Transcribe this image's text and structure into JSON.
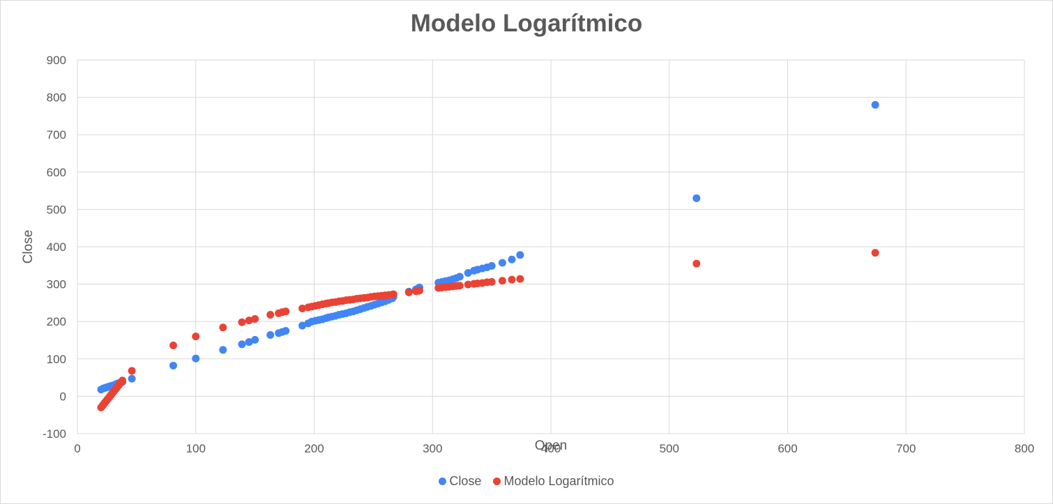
{
  "chart_data": {
    "type": "scatter",
    "title": "Modelo Logarítmico",
    "xlabel": "Open",
    "ylabel": "Close",
    "xlim": [
      0,
      800
    ],
    "ylim": [
      -100,
      900
    ],
    "xticks": [
      0,
      100,
      200,
      300,
      400,
      500,
      600,
      700,
      800
    ],
    "yticks": [
      -100,
      0,
      100,
      200,
      300,
      400,
      500,
      600,
      700,
      800,
      900
    ],
    "grid": true,
    "legend_position": "bottom",
    "series": [
      {
        "name": "Close",
        "color": "#4285f4",
        "points": [
          [
            20,
            18
          ],
          [
            22,
            21
          ],
          [
            23,
            22
          ],
          [
            24,
            23
          ],
          [
            25,
            24
          ],
          [
            26,
            25
          ],
          [
            27,
            26
          ],
          [
            28,
            27
          ],
          [
            29,
            28
          ],
          [
            30,
            29
          ],
          [
            31,
            30
          ],
          [
            32,
            31
          ],
          [
            33,
            33
          ],
          [
            34,
            34
          ],
          [
            35,
            35
          ],
          [
            36,
            36
          ],
          [
            37,
            37
          ],
          [
            38,
            38
          ],
          [
            46,
            47
          ],
          [
            81,
            82
          ],
          [
            100,
            101
          ],
          [
            123,
            124
          ],
          [
            139,
            139
          ],
          [
            145,
            145
          ],
          [
            150,
            151
          ],
          [
            163,
            164
          ],
          [
            170,
            169
          ],
          [
            173,
            172
          ],
          [
            176,
            175
          ],
          [
            190,
            189
          ],
          [
            195,
            195
          ],
          [
            198,
            200
          ],
          [
            201,
            202
          ],
          [
            204,
            204
          ],
          [
            207,
            206
          ],
          [
            210,
            209
          ],
          [
            212,
            211
          ],
          [
            215,
            213
          ],
          [
            218,
            215
          ],
          [
            221,
            218
          ],
          [
            224,
            220
          ],
          [
            227,
            222
          ],
          [
            230,
            225
          ],
          [
            233,
            227
          ],
          [
            236,
            230
          ],
          [
            239,
            233
          ],
          [
            242,
            236
          ],
          [
            245,
            239
          ],
          [
            248,
            242
          ],
          [
            251,
            245
          ],
          [
            254,
            248
          ],
          [
            257,
            251
          ],
          [
            260,
            254
          ],
          [
            263,
            258
          ],
          [
            266,
            262
          ],
          [
            267,
            266
          ],
          [
            280,
            280
          ],
          [
            286,
            286
          ],
          [
            288,
            289
          ],
          [
            289,
            291
          ],
          [
            305,
            304
          ],
          [
            308,
            306
          ],
          [
            311,
            308
          ],
          [
            314,
            310
          ],
          [
            317,
            313
          ],
          [
            320,
            316
          ],
          [
            323,
            320
          ],
          [
            330,
            330
          ],
          [
            335,
            336
          ],
          [
            338,
            339
          ],
          [
            342,
            342
          ],
          [
            346,
            345
          ],
          [
            350,
            349
          ],
          [
            359,
            357
          ],
          [
            367,
            366
          ],
          [
            374,
            378
          ],
          [
            523,
            530
          ],
          [
            674,
            780
          ]
        ]
      },
      {
        "name": "Modelo Logarítmico",
        "color": "#ea4335",
        "points": [
          [
            20,
            -30
          ],
          [
            21,
            -26
          ],
          [
            22,
            -22
          ],
          [
            23,
            -18
          ],
          [
            24,
            -14
          ],
          [
            25,
            -10
          ],
          [
            26,
            -6
          ],
          [
            27,
            -2
          ],
          [
            28,
            2
          ],
          [
            29,
            6
          ],
          [
            30,
            10
          ],
          [
            31,
            14
          ],
          [
            32,
            18
          ],
          [
            33,
            22
          ],
          [
            34,
            26
          ],
          [
            35,
            30
          ],
          [
            36,
            34
          ],
          [
            37,
            38
          ],
          [
            38,
            42
          ],
          [
            46,
            68
          ],
          [
            81,
            136
          ],
          [
            100,
            160
          ],
          [
            123,
            184
          ],
          [
            139,
            198
          ],
          [
            145,
            203
          ],
          [
            150,
            207
          ],
          [
            163,
            218
          ],
          [
            170,
            222
          ],
          [
            173,
            225
          ],
          [
            176,
            227
          ],
          [
            190,
            235
          ],
          [
            195,
            238
          ],
          [
            198,
            240
          ],
          [
            201,
            242
          ],
          [
            204,
            244
          ],
          [
            207,
            246
          ],
          [
            210,
            248
          ],
          [
            212,
            249
          ],
          [
            215,
            251
          ],
          [
            218,
            252
          ],
          [
            221,
            254
          ],
          [
            224,
            255
          ],
          [
            227,
            257
          ],
          [
            230,
            258
          ],
          [
            233,
            259
          ],
          [
            236,
            261
          ],
          [
            239,
            262
          ],
          [
            242,
            263
          ],
          [
            245,
            264
          ],
          [
            248,
            266
          ],
          [
            251,
            267
          ],
          [
            254,
            268
          ],
          [
            257,
            269
          ],
          [
            260,
            270
          ],
          [
            263,
            271
          ],
          [
            266,
            272
          ],
          [
            267,
            273
          ],
          [
            280,
            278
          ],
          [
            286,
            281
          ],
          [
            288,
            282
          ],
          [
            289,
            283
          ],
          [
            305,
            290
          ],
          [
            308,
            291
          ],
          [
            311,
            292
          ],
          [
            314,
            293
          ],
          [
            317,
            294
          ],
          [
            320,
            295
          ],
          [
            323,
            296
          ],
          [
            330,
            299
          ],
          [
            335,
            301
          ],
          [
            338,
            302
          ],
          [
            342,
            303
          ],
          [
            346,
            305
          ],
          [
            350,
            306
          ],
          [
            359,
            309
          ],
          [
            367,
            312
          ],
          [
            374,
            314
          ],
          [
            523,
            355
          ],
          [
            674,
            384
          ]
        ]
      }
    ]
  }
}
